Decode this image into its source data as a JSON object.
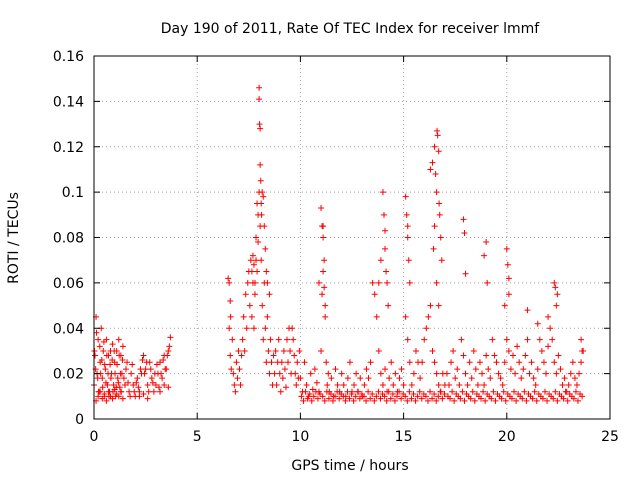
{
  "chart_data": {
    "type": "scatter",
    "title": "Day 190 of 2011, Rate Of TEC Index for receiver lmmf",
    "xlabel": "GPS time / hours",
    "ylabel": "ROTI / TECUs",
    "xlim": [
      0,
      25
    ],
    "ylim": [
      0,
      0.16
    ],
    "x_ticks": [
      0,
      5,
      10,
      15,
      20,
      25
    ],
    "x_tick_labels": [
      "0",
      "5",
      "10",
      "15",
      "20",
      "25"
    ],
    "y_ticks": [
      0,
      0.02,
      0.04,
      0.06,
      0.08,
      0.1,
      0.12,
      0.14,
      0.16
    ],
    "y_tick_labels": [
      "0",
      "0.02",
      "0.04",
      "0.06",
      "0.08",
      "0.1",
      "0.12",
      "0.14",
      "0.16"
    ],
    "grid": true,
    "marker": "+",
    "color": "#ff0000",
    "series": [
      {
        "x": [
          0.0,
          0.05,
          0.1,
          0.15,
          0.2,
          0.25,
          0.3,
          0.35,
          0.4,
          0.45,
          0.5,
          0.55,
          0.6,
          0.65,
          0.7,
          0.75,
          0.8,
          0.85,
          0.9,
          0.95,
          1.0,
          1.05,
          1.1,
          1.15,
          1.2,
          1.25,
          1.3,
          1.35,
          1.4,
          1.5,
          1.6,
          1.7,
          1.8,
          1.9,
          2.0,
          2.1,
          2.2,
          2.3,
          2.4,
          2.5,
          2.6,
          2.7,
          2.8,
          2.9,
          3.0,
          3.1,
          3.2,
          3.3,
          3.4,
          3.5,
          3.6,
          3.7,
          0.02,
          0.08,
          0.12,
          0.18,
          0.22,
          0.28,
          0.32,
          0.38,
          0.42,
          0.48,
          0.52,
          0.58,
          0.62,
          0.68,
          0.72,
          0.78,
          0.82,
          0.88,
          0.92,
          0.98,
          1.02,
          1.08,
          1.12,
          1.18,
          1.22,
          1.28,
          1.32,
          1.38,
          1.45,
          1.55,
          1.65,
          1.75,
          1.85,
          1.95,
          2.05,
          2.15,
          2.25,
          2.35,
          2.45,
          2.55,
          2.65,
          2.75,
          2.85,
          2.95,
          3.05,
          3.15,
          3.25,
          3.35,
          3.45,
          3.55,
          3.65,
          0.1,
          0.2,
          0.3,
          0.4,
          0.5,
          0.6,
          0.7,
          0.8,
          0.9,
          1.0,
          1.1,
          1.2,
          1.3,
          1.4,
          2.2,
          2.4,
          2.6,
          3.2,
          3.4,
          3.6,
          6.5,
          6.55,
          6.6,
          6.65,
          6.7,
          6.75,
          6.8,
          6.85,
          6.9,
          6.95,
          7.0,
          7.05,
          7.1,
          7.15,
          7.2,
          7.25,
          7.3,
          7.35,
          7.4,
          7.45,
          7.5,
          7.55,
          7.6,
          7.65,
          7.7,
          7.75,
          7.8,
          7.85,
          7.9,
          7.95,
          8.0,
          8.05,
          8.1,
          8.15,
          8.2,
          8.25,
          8.3,
          8.35,
          8.4,
          8.45,
          8.5,
          8.55,
          8.6,
          8.65,
          8.7,
          8.75,
          8.8,
          8.85,
          8.9,
          8.95,
          9.0,
          9.05,
          9.1,
          9.15,
          9.2,
          9.25,
          9.3,
          9.35,
          9.4,
          9.45,
          9.5,
          9.55,
          9.6,
          9.65,
          9.7,
          9.75,
          9.8,
          9.85,
          9.9,
          9.95,
          8.0,
          8.0,
          8.02,
          8.05,
          8.05,
          8.08,
          8.1,
          8.12,
          8.15,
          8.2,
          8.25,
          8.3,
          8.35,
          7.9,
          7.95,
          7.85,
          7.8,
          7.75,
          7.7,
          7.65,
          8.4,
          8.5,
          6.55,
          6.6,
          6.62,
          10.0,
          10.1,
          10.2,
          10.3,
          10.4,
          10.5,
          10.6,
          10.7,
          10.8,
          10.9,
          11.0,
          11.05,
          11.1,
          11.15,
          11.2,
          11.25,
          11.3,
          11.35,
          11.4,
          11.5,
          11.6,
          11.7,
          11.8,
          11.9,
          12.0,
          12.1,
          12.2,
          12.3,
          12.4,
          12.5,
          12.6,
          12.7,
          12.8,
          12.9,
          13.0,
          13.1,
          13.2,
          13.3,
          13.4,
          13.5,
          13.6,
          13.7,
          13.8,
          13.9,
          14.0,
          14.1,
          14.2,
          14.3,
          14.4,
          14.5,
          14.6,
          14.7,
          14.8,
          14.9,
          15.0,
          15.1,
          15.2,
          15.3,
          15.4,
          15.5,
          15.6,
          15.7,
          15.8,
          15.9,
          16.0,
          16.1,
          16.2,
          16.3,
          16.4,
          16.5,
          16.6,
          16.7,
          16.8,
          16.9,
          17.0,
          10.05,
          10.15,
          10.25,
          10.35,
          10.45,
          10.55,
          10.65,
          10.75,
          10.85,
          10.95,
          11.08,
          11.18,
          11.28,
          11.38,
          11.48,
          11.58,
          11.68,
          11.78,
          11.88,
          11.98,
          12.08,
          12.18,
          12.28,
          12.38,
          12.48,
          12.58,
          12.68,
          12.78,
          12.88,
          12.98,
          13.08,
          13.18,
          13.28,
          13.38,
          13.48,
          13.58,
          13.68,
          13.78,
          13.88,
          13.98,
          14.08,
          14.18,
          14.28,
          14.38,
          14.48,
          14.58,
          14.68,
          14.78,
          14.88,
          14.98,
          15.08,
          15.18,
          15.28,
          15.38,
          15.48,
          15.58,
          15.68,
          15.78,
          15.88,
          15.98,
          16.08,
          16.18,
          16.28,
          16.38,
          16.48,
          16.58,
          16.68,
          16.78,
          16.88,
          16.98,
          10.9,
          11.0,
          11.05,
          11.1,
          11.1,
          11.15,
          11.2,
          13.8,
          13.9,
          14.0,
          14.05,
          14.1,
          14.1,
          14.15,
          14.2,
          14.25,
          15.1,
          15.15,
          15.2,
          15.2,
          15.25,
          15.3,
          16.3,
          16.4,
          16.5,
          16.55,
          16.6,
          16.62,
          16.65,
          16.7,
          16.72,
          16.75,
          16.8,
          16.85,
          16.5,
          16.45,
          16.6,
          16.7,
          17.1,
          17.2,
          17.3,
          17.4,
          17.5,
          17.6,
          17.7,
          17.8,
          17.9,
          18.0,
          18.1,
          18.2,
          18.3,
          18.4,
          18.5,
          18.6,
          18.7,
          18.8,
          18.9,
          19.0,
          19.1,
          19.2,
          19.3,
          19.4,
          19.5,
          19.6,
          19.7,
          19.8,
          19.9,
          20.0,
          20.1,
          20.2,
          20.3,
          20.4,
          20.5,
          20.6,
          20.7,
          20.8,
          20.9,
          21.0,
          21.1,
          21.2,
          21.3,
          21.4,
          21.5,
          21.6,
          21.7,
          21.8,
          21.9,
          22.0,
          22.1,
          22.2,
          22.3,
          22.4,
          22.5,
          22.6,
          22.7,
          22.8,
          22.9,
          23.0,
          23.1,
          23.2,
          23.3,
          23.4,
          23.5,
          23.6,
          23.7,
          17.15,
          17.25,
          17.35,
          17.45,
          17.55,
          17.65,
          17.75,
          17.85,
          17.95,
          18.05,
          18.15,
          18.25,
          18.35,
          18.45,
          18.55,
          18.65,
          18.75,
          18.85,
          18.95,
          19.05,
          19.15,
          19.25,
          19.35,
          19.45,
          19.55,
          19.65,
          19.75,
          19.85,
          19.95,
          20.05,
          20.15,
          20.25,
          20.35,
          20.45,
          20.55,
          20.65,
          20.75,
          20.85,
          20.95,
          21.05,
          21.15,
          21.25,
          21.35,
          21.45,
          21.55,
          21.65,
          21.75,
          21.85,
          21.95,
          22.05,
          22.15,
          22.25,
          22.35,
          22.45,
          22.55,
          22.65,
          22.75,
          22.85,
          22.95,
          23.05,
          23.15,
          23.25,
          23.35,
          23.45,
          23.55,
          23.65,
          17.9,
          17.95,
          18.0,
          18.9,
          19.0,
          19.05,
          20.0,
          20.05,
          20.1,
          22.3,
          22.35,
          22.4,
          22.45,
          23.6,
          23.65,
          19.9,
          20.1,
          21.0,
          21.5,
          22.0
        ],
        "y": [
          0.015,
          0.028,
          0.045,
          0.02,
          0.035,
          0.012,
          0.025,
          0.04,
          0.018,
          0.03,
          0.01,
          0.022,
          0.035,
          0.015,
          0.028,
          0.012,
          0.03,
          0.02,
          0.033,
          0.015,
          0.025,
          0.01,
          0.03,
          0.018,
          0.035,
          0.014,
          0.028,
          0.02,
          0.032,
          0.015,
          0.025,
          0.012,
          0.02,
          0.015,
          0.01,
          0.018,
          0.012,
          0.02,
          0.028,
          0.022,
          0.015,
          0.025,
          0.018,
          0.012,
          0.015,
          0.02,
          0.025,
          0.018,
          0.028,
          0.022,
          0.03,
          0.036,
          0.03,
          0.022,
          0.038,
          0.018,
          0.012,
          0.032,
          0.02,
          0.026,
          0.014,
          0.034,
          0.024,
          0.016,
          0.028,
          0.02,
          0.01,
          0.024,
          0.018,
          0.026,
          0.012,
          0.03,
          0.02,
          0.014,
          0.024,
          0.016,
          0.028,
          0.02,
          0.012,
          0.026,
          0.018,
          0.022,
          0.016,
          0.01,
          0.024,
          0.012,
          0.016,
          0.014,
          0.022,
          0.026,
          0.02,
          0.025,
          0.012,
          0.022,
          0.016,
          0.02,
          0.024,
          0.014,
          0.02,
          0.026,
          0.022,
          0.028,
          0.032,
          0.008,
          0.01,
          0.012,
          0.009,
          0.011,
          0.008,
          0.012,
          0.01,
          0.009,
          0.013,
          0.011,
          0.01,
          0.012,
          0.009,
          0.01,
          0.011,
          0.009,
          0.012,
          0.015,
          0.014,
          0.062,
          0.04,
          0.028,
          0.022,
          0.035,
          0.02,
          0.015,
          0.012,
          0.025,
          0.018,
          0.03,
          0.022,
          0.015,
          0.028,
          0.035,
          0.045,
          0.03,
          0.055,
          0.04,
          0.06,
          0.065,
          0.05,
          0.07,
          0.045,
          0.06,
          0.04,
          0.055,
          0.08,
          0.065,
          0.09,
          0.1,
          0.085,
          0.07,
          0.05,
          0.035,
          0.06,
          0.04,
          0.025,
          0.045,
          0.03,
          0.02,
          0.035,
          0.025,
          0.015,
          0.028,
          0.02,
          0.03,
          0.015,
          0.025,
          0.035,
          0.02,
          0.012,
          0.025,
          0.018,
          0.03,
          0.022,
          0.014,
          0.035,
          0.025,
          0.04,
          0.03,
          0.02,
          0.04,
          0.035,
          0.028,
          0.02,
          0.015,
          0.025,
          0.018,
          0.03,
          0.146,
          0.141,
          0.13,
          0.128,
          0.112,
          0.105,
          0.095,
          0.09,
          0.1,
          0.098,
          0.085,
          0.075,
          0.065,
          0.095,
          0.078,
          0.07,
          0.06,
          0.068,
          0.072,
          0.065,
          0.06,
          0.055,
          0.06,
          0.052,
          0.045,
          0.018,
          0.012,
          0.025,
          0.015,
          0.01,
          0.02,
          0.013,
          0.022,
          0.016,
          0.012,
          0.03,
          0.055,
          0.085,
          0.07,
          0.045,
          0.025,
          0.015,
          0.02,
          0.012,
          0.018,
          0.01,
          0.022,
          0.015,
          0.012,
          0.02,
          0.015,
          0.01,
          0.018,
          0.025,
          0.012,
          0.015,
          0.02,
          0.012,
          0.018,
          0.01,
          0.015,
          0.022,
          0.018,
          0.025,
          0.06,
          0.055,
          0.045,
          0.03,
          0.02,
          0.015,
          0.022,
          0.012,
          0.018,
          0.025,
          0.015,
          0.02,
          0.012,
          0.018,
          0.022,
          0.015,
          0.045,
          0.035,
          0.025,
          0.015,
          0.02,
          0.03,
          0.025,
          0.018,
          0.025,
          0.035,
          0.04,
          0.045,
          0.05,
          0.03,
          0.025,
          0.02,
          0.015,
          0.012,
          0.02,
          0.015,
          0.01,
          0.008,
          0.012,
          0.009,
          0.011,
          0.008,
          0.01,
          0.012,
          0.009,
          0.011,
          0.01,
          0.008,
          0.012,
          0.009,
          0.011,
          0.008,
          0.01,
          0.012,
          0.009,
          0.011,
          0.01,
          0.008,
          0.012,
          0.009,
          0.011,
          0.008,
          0.01,
          0.012,
          0.009,
          0.011,
          0.01,
          0.008,
          0.012,
          0.009,
          0.011,
          0.008,
          0.01,
          0.012,
          0.009,
          0.011,
          0.01,
          0.008,
          0.012,
          0.009,
          0.011,
          0.008,
          0.01,
          0.012,
          0.009,
          0.011,
          0.01,
          0.008,
          0.012,
          0.009,
          0.011,
          0.008,
          0.01,
          0.012,
          0.009,
          0.011,
          0.01,
          0.008,
          0.012,
          0.009,
          0.011,
          0.008,
          0.01,
          0.012,
          0.009,
          0.011,
          0.06,
          0.093,
          0.085,
          0.08,
          0.065,
          0.058,
          0.05,
          0.06,
          0.07,
          0.1,
          0.09,
          0.083,
          0.075,
          0.065,
          0.06,
          0.05,
          0.098,
          0.09,
          0.085,
          0.08,
          0.07,
          0.06,
          0.11,
          0.113,
          0.12,
          0.108,
          0.1,
          0.127,
          0.125,
          0.118,
          0.095,
          0.09,
          0.08,
          0.07,
          0.085,
          0.075,
          0.06,
          0.05,
          0.02,
          0.015,
          0.025,
          0.03,
          0.018,
          0.022,
          0.015,
          0.035,
          0.028,
          0.02,
          0.015,
          0.025,
          0.018,
          0.03,
          0.022,
          0.015,
          0.025,
          0.02,
          0.015,
          0.028,
          0.022,
          0.018,
          0.035,
          0.028,
          0.025,
          0.02,
          0.018,
          0.015,
          0.025,
          0.035,
          0.03,
          0.022,
          0.028,
          0.02,
          0.032,
          0.025,
          0.018,
          0.022,
          0.028,
          0.035,
          0.02,
          0.025,
          0.018,
          0.015,
          0.022,
          0.035,
          0.03,
          0.025,
          0.02,
          0.032,
          0.04,
          0.035,
          0.025,
          0.02,
          0.028,
          0.022,
          0.015,
          0.018,
          0.012,
          0.015,
          0.02,
          0.025,
          0.018,
          0.015,
          0.02,
          0.025,
          0.03,
          0.01,
          0.009,
          0.012,
          0.008,
          0.011,
          0.01,
          0.009,
          0.012,
          0.008,
          0.011,
          0.01,
          0.009,
          0.012,
          0.008,
          0.011,
          0.01,
          0.009,
          0.012,
          0.008,
          0.011,
          0.01,
          0.009,
          0.012,
          0.008,
          0.011,
          0.01,
          0.009,
          0.012,
          0.008,
          0.011,
          0.01,
          0.009,
          0.012,
          0.008,
          0.011,
          0.01,
          0.009,
          0.012,
          0.008,
          0.011,
          0.01,
          0.009,
          0.012,
          0.008,
          0.011,
          0.01,
          0.009,
          0.012,
          0.008,
          0.011,
          0.01,
          0.009,
          0.012,
          0.008,
          0.011,
          0.01,
          0.009,
          0.012,
          0.008,
          0.011,
          0.01,
          0.009,
          0.012,
          0.008,
          0.011,
          0.01,
          0.088,
          0.082,
          0.064,
          0.072,
          0.078,
          0.06,
          0.075,
          0.068,
          0.062,
          0.06,
          0.058,
          0.05,
          0.055,
          0.035,
          0.03,
          0.05,
          0.055,
          0.048,
          0.042,
          0.045
        ]
      }
    ]
  }
}
